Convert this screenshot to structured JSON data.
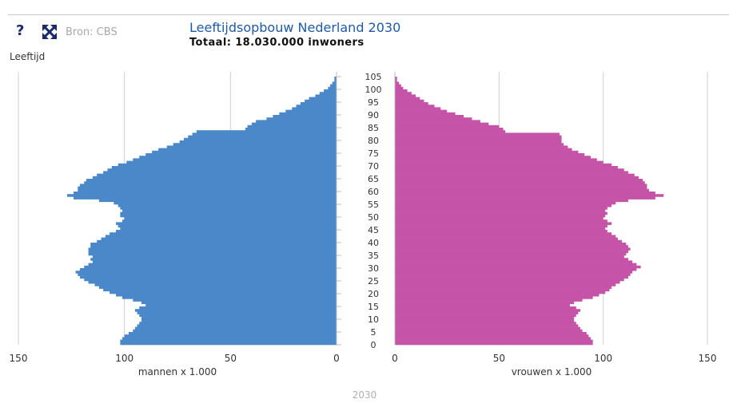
{
  "header": {
    "help_label": "?",
    "fullscreen_icon": "expand-arrows-icon",
    "source": "Bron: CBS",
    "title": "Leeftijdsopbouw Nederland 2030",
    "subtitle": "Totaal: 18.030.000 inwoners"
  },
  "footer": {
    "year": "2030"
  },
  "colors": {
    "men": "#4a88c9",
    "women": "#c554a8",
    "title": "#1f5aa6",
    "grid": "#cfcfcf"
  },
  "chart_data": {
    "type": "population-pyramid",
    "title": "Leeftijdsopbouw Nederland 2030",
    "subtitle": "Totaal: 18.030.000 inwoners",
    "ylabel": "Leeftijd",
    "ages": {
      "min": 0,
      "max": 105,
      "ticks": [
        0,
        5,
        10,
        15,
        20,
        25,
        30,
        35,
        40,
        45,
        50,
        55,
        60,
        65,
        70,
        75,
        80,
        85,
        90,
        95,
        100,
        105
      ]
    },
    "xticks": [
      150,
      100,
      50,
      0
    ],
    "xlim": [
      0,
      150
    ],
    "series": [
      {
        "name": "mannen x 1.000",
        "side": "left",
        "color": "#4a88c9",
        "values": [
          102,
          102,
          101,
          100,
          98,
          96,
          95,
          94,
          93,
          92,
          92,
          93,
          94,
          95,
          93,
          90,
          92,
          96,
          101,
          104,
          107,
          110,
          112,
          114,
          117,
          119,
          121,
          122,
          123,
          121,
          119,
          117,
          115,
          116,
          115,
          117,
          117,
          117,
          116,
          116,
          113,
          111,
          109,
          107,
          104,
          102,
          103,
          104,
          101,
          100,
          102,
          102,
          101,
          102,
          103,
          105,
          112,
          124,
          127,
          124,
          122,
          122,
          121,
          119,
          118,
          115,
          113,
          110,
          108,
          106,
          103,
          99,
          96,
          93,
          90,
          87,
          84,
          80,
          77,
          74,
          72,
          70,
          68,
          66,
          43,
          42,
          40,
          38,
          33,
          30,
          27,
          24,
          21,
          19,
          17,
          15,
          13,
          10,
          8,
          6,
          4,
          3,
          2,
          1,
          1,
          0
        ]
      },
      {
        "name": "vrouwen x 1.000",
        "side": "right",
        "color": "#c554a8",
        "values": [
          95,
          95,
          94,
          93,
          92,
          90,
          89,
          88,
          87,
          86,
          86,
          87,
          88,
          89,
          87,
          84,
          86,
          90,
          95,
          98,
          101,
          103,
          104,
          106,
          108,
          110,
          112,
          113,
          114,
          116,
          118,
          116,
          114,
          112,
          110,
          111,
          112,
          113,
          112,
          111,
          109,
          107,
          106,
          104,
          102,
          101,
          102,
          104,
          102,
          100,
          101,
          102,
          101,
          102,
          104,
          106,
          112,
          125,
          129,
          125,
          122,
          121,
          121,
          120,
          119,
          117,
          115,
          112,
          110,
          107,
          104,
          100,
          97,
          94,
          91,
          88,
          85,
          83,
          81,
          80,
          80,
          80,
          79,
          53,
          52,
          50,
          45,
          41,
          37,
          33,
          29,
          25,
          22,
          19,
          16,
          14,
          12,
          10,
          8,
          6,
          4,
          3,
          2,
          1,
          1,
          0
        ]
      }
    ]
  }
}
